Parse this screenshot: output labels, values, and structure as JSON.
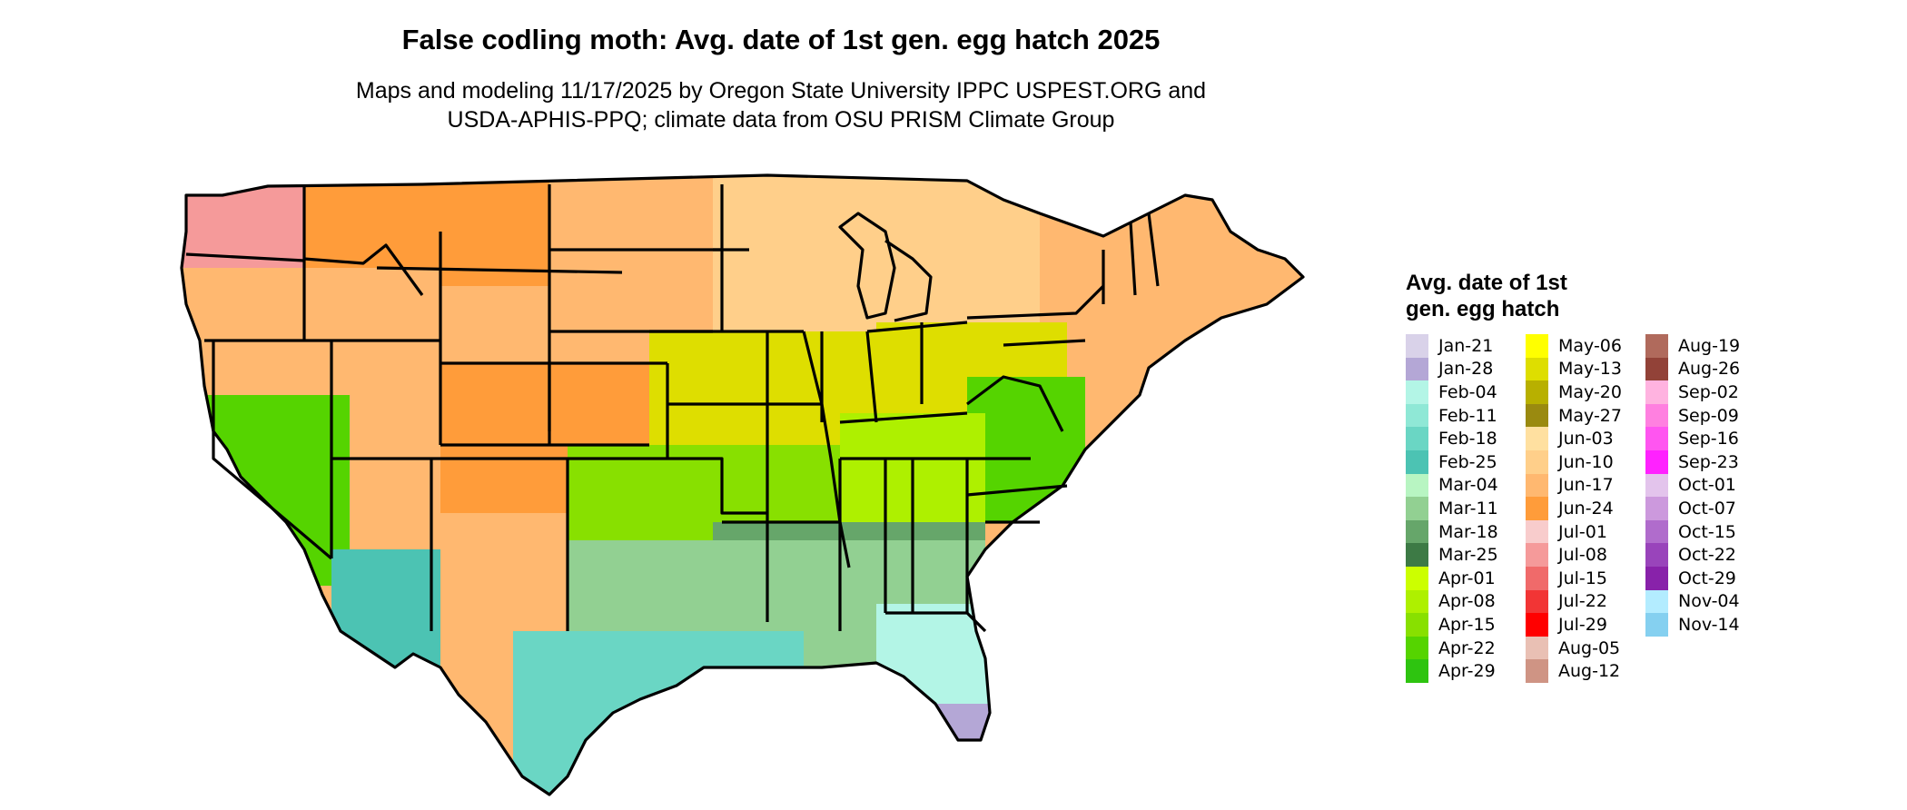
{
  "title": "False codling moth: Avg. date of 1st gen. egg hatch 2025",
  "subtitle_line1": "Maps and modeling 11/17/2025 by Oregon State University IPPC USPEST.ORG and",
  "subtitle_line2": "USDA-APHIS-PPQ; climate data from OSU PRISM Climate Group",
  "legend": {
    "title": "Avg. date of 1st gen. egg hatch",
    "columns": [
      [
        {
          "label": "Jan-21",
          "color": "#d9d2e9"
        },
        {
          "label": "Jan-28",
          "color": "#b4a7d6"
        },
        {
          "label": "Feb-04",
          "color": "#b3f5e6"
        },
        {
          "label": "Feb-11",
          "color": "#8fe8d6"
        },
        {
          "label": "Feb-18",
          "color": "#6ad6c4"
        },
        {
          "label": "Feb-25",
          "color": "#4cc3b3"
        },
        {
          "label": "Mar-04",
          "color": "#b8f5c2"
        },
        {
          "label": "Mar-11",
          "color": "#92d092"
        },
        {
          "label": "Mar-18",
          "color": "#66a66a"
        },
        {
          "label": "Mar-25",
          "color": "#3d7a45"
        },
        {
          "label": "Apr-01",
          "color": "#ccff00"
        },
        {
          "label": "Apr-08",
          "color": "#aef000"
        },
        {
          "label": "Apr-15",
          "color": "#88e000"
        },
        {
          "label": "Apr-22",
          "color": "#55d400"
        },
        {
          "label": "Apr-29",
          "color": "#2ec410"
        }
      ],
      [
        {
          "label": "May-06",
          "color": "#ffff00"
        },
        {
          "label": "May-13",
          "color": "#dede00"
        },
        {
          "label": "May-20",
          "color": "#b8b000"
        },
        {
          "label": "May-27",
          "color": "#9a8a10"
        },
        {
          "label": "Jun-03",
          "color": "#ffe0a0"
        },
        {
          "label": "Jun-10",
          "color": "#ffcf8a"
        },
        {
          "label": "Jun-17",
          "color": "#ffb870"
        },
        {
          "label": "Jun-24",
          "color": "#ff9c3a"
        },
        {
          "label": "Jul-01",
          "color": "#f8cccc"
        },
        {
          "label": "Jul-08",
          "color": "#f59a9a"
        },
        {
          "label": "Jul-15",
          "color": "#f06a6a"
        },
        {
          "label": "Jul-22",
          "color": "#f23535"
        },
        {
          "label": "Jul-29",
          "color": "#ff0000"
        },
        {
          "label": "Aug-05",
          "color": "#e9c0b4"
        },
        {
          "label": "Aug-12",
          "color": "#cf9484"
        }
      ],
      [
        {
          "label": "Aug-19",
          "color": "#b06a5c"
        },
        {
          "label": "Aug-26",
          "color": "#924238"
        },
        {
          "label": "Sep-02",
          "color": "#ffb3e0"
        },
        {
          "label": "Sep-09",
          "color": "#ff80e0"
        },
        {
          "label": "Sep-16",
          "color": "#ff55f0"
        },
        {
          "label": "Sep-23",
          "color": "#ff22ff"
        },
        {
          "label": "Oct-01",
          "color": "#e3c4ec"
        },
        {
          "label": "Oct-07",
          "color": "#cc99dd"
        },
        {
          "label": "Oct-15",
          "color": "#b06ccc"
        },
        {
          "label": "Oct-22",
          "color": "#9944bb"
        },
        {
          "label": "Oct-29",
          "color": "#8822aa"
        },
        {
          "label": "Nov-04",
          "color": "#b3ecff"
        },
        {
          "label": "Nov-14",
          "color": "#85d0f0"
        }
      ]
    ]
  },
  "map": {
    "water_color": "#ffffff",
    "border_color": "#000000",
    "regions": [
      {
        "name": "pacific-northwest",
        "color": "#f59a9a"
      },
      {
        "name": "northern-rockies",
        "color": "#ff9c3a"
      },
      {
        "name": "northern-plains",
        "color": "#ffb870"
      },
      {
        "name": "upper-midwest",
        "color": "#ffcf8a"
      },
      {
        "name": "great-lakes",
        "color": "#ffcf8a"
      },
      {
        "name": "northeast",
        "color": "#ffb870"
      },
      {
        "name": "great-basin",
        "color": "#ffb870"
      },
      {
        "name": "southern-rockies",
        "color": "#ff9c3a"
      },
      {
        "name": "central-plains",
        "color": "#dede00"
      },
      {
        "name": "ohio-valley",
        "color": "#dede00"
      },
      {
        "name": "mid-atlantic",
        "color": "#55d400"
      },
      {
        "name": "southern-plains",
        "color": "#88e000"
      },
      {
        "name": "southeast",
        "color": "#aef000"
      },
      {
        "name": "deep-south",
        "color": "#66a66a"
      },
      {
        "name": "gulf-coast",
        "color": "#92d092"
      },
      {
        "name": "south-texas",
        "color": "#6ad6c4"
      },
      {
        "name": "florida",
        "color": "#b3f5e6"
      },
      {
        "name": "south-florida",
        "color": "#b4a7d6"
      },
      {
        "name": "california",
        "color": "#55d400"
      },
      {
        "name": "desert-southwest",
        "color": "#4cc3b3"
      }
    ]
  }
}
